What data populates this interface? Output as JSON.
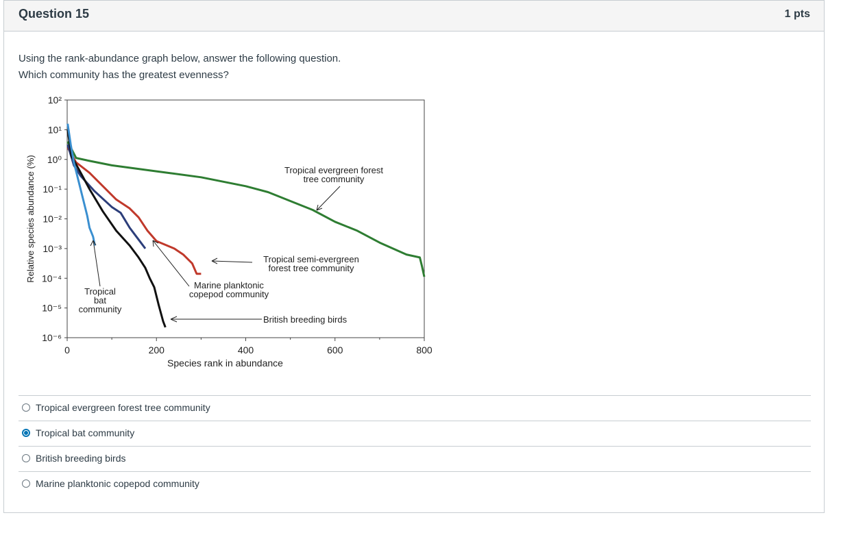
{
  "question": {
    "title": "Question 15",
    "points": "1 pts",
    "prompt_line1": "Using the rank-abundance graph below, answer the following question.",
    "prompt_line2": "Which community has the greatest evenness?"
  },
  "chart_data": {
    "type": "line",
    "xlabel": "Species rank in abundance",
    "ylabel": "Relative species abundance (%)",
    "xlim": [
      0,
      800
    ],
    "ylim_log10": [
      -6,
      2
    ],
    "x_ticks": [
      "0",
      "200",
      "400",
      "600",
      "800"
    ],
    "y_ticks": [
      "10²",
      "10¹",
      "10⁰",
      "10⁻¹",
      "10⁻²",
      "10⁻³",
      "10⁻⁴",
      "10⁻⁵",
      "10⁻⁶"
    ],
    "series": [
      {
        "name": "Tropical evergreen forest tree community",
        "color": "#2e7d32",
        "points": [
          [
            1,
            0.6
          ],
          [
            20,
            0.05
          ],
          [
            50,
            -0.05
          ],
          [
            100,
            -0.2
          ],
          [
            200,
            -0.4
          ],
          [
            300,
            -0.6
          ],
          [
            400,
            -0.9
          ],
          [
            450,
            -1.1
          ],
          [
            500,
            -1.4
          ],
          [
            550,
            -1.7
          ],
          [
            600,
            -2.1
          ],
          [
            650,
            -2.4
          ],
          [
            700,
            -2.8
          ],
          [
            760,
            -3.2
          ],
          [
            790,
            -3.3
          ],
          [
            795,
            -3.6
          ],
          [
            800,
            -3.95
          ]
        ]
      },
      {
        "name": "Tropical semi-evergreen forest tree community",
        "color": "#c0392b",
        "points": [
          [
            1,
            0.4
          ],
          [
            20,
            -0.1
          ],
          [
            50,
            -0.45
          ],
          [
            80,
            -0.9
          ],
          [
            110,
            -1.35
          ],
          [
            140,
            -1.65
          ],
          [
            160,
            -1.95
          ],
          [
            180,
            -2.4
          ],
          [
            200,
            -2.75
          ],
          [
            240,
            -3.0
          ],
          [
            260,
            -3.2
          ],
          [
            280,
            -3.5
          ],
          [
            290,
            -3.85
          ],
          [
            300,
            -3.85
          ]
        ]
      },
      {
        "name": "Marine planktonic copepod community",
        "color": "#2c3e7a",
        "points": [
          [
            1,
            0.5
          ],
          [
            15,
            -0.2
          ],
          [
            30,
            -0.55
          ],
          [
            60,
            -1.05
          ],
          [
            100,
            -1.6
          ],
          [
            120,
            -1.8
          ],
          [
            140,
            -2.3
          ],
          [
            150,
            -2.5
          ],
          [
            165,
            -2.8
          ],
          [
            175,
            -3.0
          ]
        ]
      },
      {
        "name": "British breeding birds",
        "color": "#111111",
        "points": [
          [
            1,
            1.0
          ],
          [
            10,
            0.1
          ],
          [
            25,
            -0.3
          ],
          [
            50,
            -1.0
          ],
          [
            80,
            -1.75
          ],
          [
            110,
            -2.4
          ],
          [
            140,
            -2.9
          ],
          [
            160,
            -3.3
          ],
          [
            175,
            -3.65
          ],
          [
            185,
            -4.0
          ],
          [
            195,
            -4.3
          ],
          [
            205,
            -4.9
          ],
          [
            215,
            -5.45
          ],
          [
            220,
            -5.65
          ]
        ]
      },
      {
        "name": "Tropical bat community",
        "color": "#3a8fd0",
        "points": [
          [
            1,
            1.2
          ],
          [
            8,
            0.5
          ],
          [
            15,
            -0.1
          ],
          [
            25,
            -0.7
          ],
          [
            35,
            -1.3
          ],
          [
            45,
            -1.9
          ],
          [
            50,
            -2.3
          ],
          [
            58,
            -2.6
          ],
          [
            62,
            -2.9
          ]
        ]
      }
    ],
    "annotations": [
      {
        "line1": "Tropical evergreen forest",
        "line2": "tree community"
      },
      {
        "line1": "Tropical semi-evergreen",
        "line2": "forest tree community"
      },
      {
        "line1": "Marine planktonic",
        "line2": "copepod community"
      },
      {
        "line1": "British breeding birds",
        "line2": ""
      },
      {
        "line1": "Tropical",
        "line2": "bat",
        "line3": "community"
      }
    ]
  },
  "answers": [
    {
      "label": "Tropical evergreen forest tree community",
      "selected": false
    },
    {
      "label": "Tropical bat community",
      "selected": true
    },
    {
      "label": "British breeding birds",
      "selected": false
    },
    {
      "label": "Marine planktonic copepod community",
      "selected": false
    }
  ]
}
